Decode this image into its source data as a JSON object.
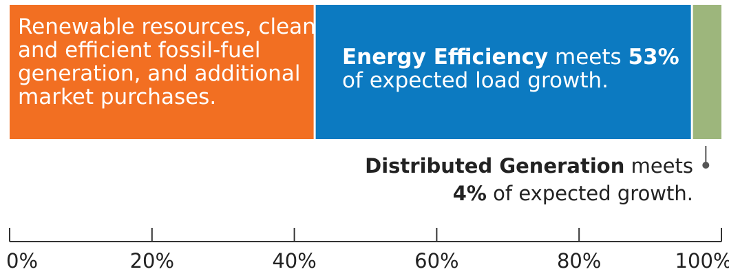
{
  "chart_data": {
    "type": "bar",
    "orientation": "horizontal-stacked",
    "title": "",
    "xlabel": "",
    "ylabel": "",
    "xlim": [
      0,
      100
    ],
    "ticks": [
      0,
      20,
      40,
      60,
      80,
      100
    ],
    "tick_labels": [
      "0%",
      "20%",
      "40%",
      "60%",
      "80%",
      "100%"
    ],
    "grid": false,
    "legend": "none",
    "series": [
      {
        "key": "other",
        "value": 43,
        "color": "#f26f22",
        "label_lines": [
          "Renewable resources, clean",
          "and efficient fossil-fuel",
          "generation, and additional",
          "market purchases."
        ]
      },
      {
        "key": "ee",
        "value": 53,
        "color": "#0c7ac1",
        "label": {
          "line1_bold": "Energy Efficiency",
          "line1_text": " meets ",
          "line1_pct": "53%",
          "line2": "of expected load growth."
        }
      },
      {
        "key": "dg",
        "value": 4,
        "color": "#9db67c",
        "label": {
          "line1_bold": "Distributed Generation",
          "line1_text": " meets",
          "line2_pct": "4%",
          "line2_text": " of expected growth."
        }
      }
    ]
  }
}
